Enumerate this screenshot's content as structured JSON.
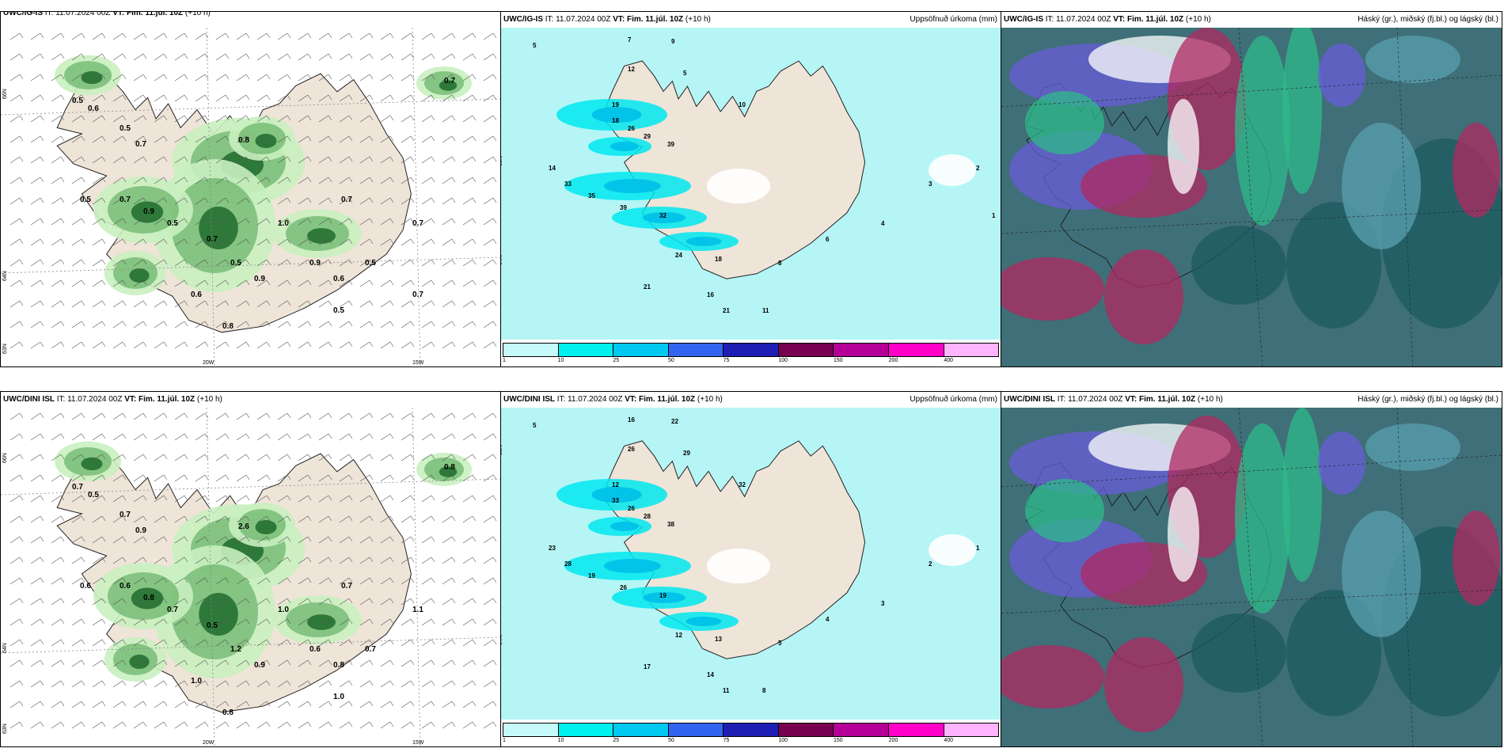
{
  "panels": {
    "tl": {
      "model": "UWC/IG-IS",
      "it": "IT: 11.07.2024 00Z",
      "vt": "VT: Fim. 11.júl. 10Z",
      "lead": "(+10 h)",
      "right": ""
    },
    "tm": {
      "model": "UWC/IG-IS",
      "it": "IT: 11.07.2024 00Z",
      "vt": "VT: Fim. 11.júl. 10Z",
      "lead": "(+10 h)",
      "right": "Uppsöfnuð úrkoma (mm)"
    },
    "tr": {
      "model": "UWC/IG-IS",
      "it": "IT: 11.07.2024 00Z",
      "vt": "VT: Fim. 11.júl. 10Z",
      "lead": "(+10 h)",
      "right": "Háský (gr.), miðský (fj.bl.) og lágský (bl.)"
    },
    "bl": {
      "model": "UWC/DINI ISL",
      "it": "IT: 11.07.2024 00Z",
      "vt": "VT: Fim. 11.júl. 10Z",
      "lead": "(+10 h)",
      "right": ""
    },
    "bm": {
      "model": "UWC/DINI ISL",
      "it": "IT: 11.07.2024 00Z",
      "vt": "VT: Fim. 11.júl. 10Z",
      "lead": "(+10 h)",
      "right": "Uppsöfnuð úrkoma (mm)"
    },
    "br": {
      "model": "UWC/DINI ISL",
      "it": "IT: 11.07.2024 00Z",
      "vt": "VT: Fim. 11.júl. 10Z",
      "lead": "(+10 h)",
      "right": "Háský (gr.), miðský (fj.bl.) og lágský (bl.)"
    }
  },
  "axes": {
    "lat66": "66N",
    "lat64": "64N",
    "lat63": "63N",
    "lon20": "20W",
    "lon15": "15W"
  },
  "colorbar": {
    "labels": [
      "1",
      "10",
      "25",
      "50",
      "75",
      "100",
      "150",
      "200",
      "400"
    ],
    "colors": [
      "#c6fafa",
      "#00f0f0",
      "#00c8f0",
      "#3264f0",
      "#1e1eb4",
      "#780050",
      "#b40096",
      "#ff00c8",
      "#ffb4ff"
    ]
  },
  "colors": {
    "land": "#efe4d8",
    "precipLight": "#b5f5f5",
    "greenLight": "#c9efc0",
    "greenMid": "#66b266",
    "greenDark": "#1f6b2d"
  },
  "tl_values": [
    "0.5",
    "0.6",
    "0.5",
    "0.7",
    "0.5",
    "0.7",
    "0.9",
    "0.5",
    "0.7",
    "0.5",
    "0.9",
    "0.6",
    "0.8",
    "1.0",
    "0.9",
    "0.6",
    "0.7",
    "0.5",
    "0.7",
    "0.7",
    "0.8",
    "0.5",
    "0.7"
  ],
  "bl_values": [
    "0.7",
    "0.5",
    "0.7",
    "0.9",
    "0.6",
    "0.6",
    "0.8",
    "0.7",
    "0.5",
    "1.2",
    "0.9",
    "1.0",
    "0.8",
    "1.0",
    "0.6",
    "0.8",
    "0.7",
    "0.7",
    "1.1",
    "0.8",
    "2.6",
    "1.0"
  ],
  "tm_values": [
    "5",
    "7",
    "9",
    "12",
    "5",
    "10",
    "19",
    "18",
    "26",
    "29",
    "39",
    "14",
    "33",
    "35",
    "39",
    "32",
    "24",
    "18",
    "21",
    "16",
    "21",
    "11",
    "8",
    "6",
    "4",
    "3",
    "2",
    "1"
  ],
  "bm_values": [
    "5",
    "16",
    "22",
    "26",
    "29",
    "32",
    "12",
    "33",
    "26",
    "28",
    "38",
    "23",
    "28",
    "19",
    "26",
    "19",
    "12",
    "13",
    "17",
    "14",
    "11",
    "8",
    "5",
    "4",
    "3",
    "2",
    "1"
  ]
}
